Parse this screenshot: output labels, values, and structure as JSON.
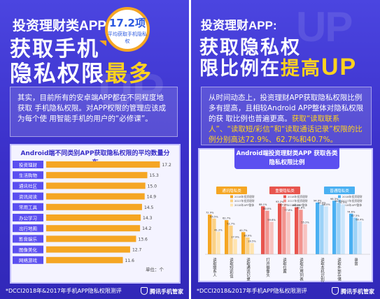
{
  "left": {
    "title_line1": "投资理财类APP",
    "title_line2": "获取手机",
    "title_line3_main": "隐私权限",
    "title_line3_highlight": "最多",
    "badge_value": "17.2项",
    "badge_sub": "平均获取手机隐私权",
    "body_text": "其实，目前所有的安卓端APP都在不同程度地获取 手机隐私权限。对APP权限的管理应该成为每个使 用智能手机的用户的“必修课”。",
    "footer": "*DCCI2018年&2017年手机APP隐私权限测评",
    "logo": "腾讯手机管家"
  },
  "right": {
    "title_line1": "投资理财APP:",
    "title_line2": "获取隐私权",
    "title_line3_main": "限比例在",
    "title_line3_highlight": "提高",
    "title_line3_up": "UP",
    "body_text_1": "从时间动态上，投资理财APP获取隐私权限比例多有提高，且相较Android APP整体对隐私权限的获 取比例也普遍更高。",
    "body_text_2": "获取“读取联系人”、“读取短/彩信”和“读取通话记录”权限的比例分别高达72.9%、62.7%和40.7%。",
    "footer": "*DCCI2018&2017年手机APP隐私权限测评",
    "logo": "腾讯手机管家"
  },
  "chart_data": [
    {
      "type": "bar",
      "orientation": "horizontal",
      "title": "Android端不同类别APP获取隐私权限的平均数量分布",
      "unit_label": "单位：个",
      "categories": [
        "投资理财",
        "生活购物",
        "通讯社区",
        "资讯阅读",
        "常用工具",
        "办公学习",
        "出行地图",
        "影音娱乐",
        "图像美化",
        "网络游戏"
      ],
      "values": [
        17.2,
        15.3,
        15.0,
        14.9,
        14.5,
        14.3,
        14.2,
        13.6,
        12.7,
        11.6
      ],
      "colors": {
        "bar": "#f5a623",
        "label_bg": "#5b4ff0"
      }
    },
    {
      "type": "bar",
      "title": "Android端投资理财类APP 获取各类隐私权限比例",
      "groups": [
        {
          "name": "通讯隐私类",
          "color": "#f5a623",
          "categories": [
            "读取联系人",
            "读取短/彩信",
            "读取通话记录"
          ]
        },
        {
          "name": "重要隐私类",
          "color": "#e8554e",
          "categories": [
            "打开摄像头",
            "读取位置",
            "读取应用列表"
          ]
        },
        {
          "name": "普通隐私类",
          "color": "#4ab0f2",
          "categories": [
            "读取本机识别码",
            "读取外部存储",
            "录音"
          ]
        }
      ],
      "series": [
        {
          "name": "2018年投资理财",
          "values": [
            72.9,
            62.7,
            40.7,
            88.1,
            93.2,
            86.4,
            94.9,
            98.3,
            74.6
          ]
        },
        {
          "name": "2017年投资理财",
          "values": [
            65.5,
            52.7,
            30.9,
            80.0,
            87.3,
            81.8,
            90.9,
            94.5,
            67.3
          ]
        },
        {
          "name": "2018年APP整体",
          "values": [
            41.2,
            27.9,
            20.5,
            59.6,
            77.8,
            55.2,
            88.0,
            91.5,
            60.4
          ]
        }
      ],
      "ylim": [
        0,
        100
      ]
    }
  ]
}
